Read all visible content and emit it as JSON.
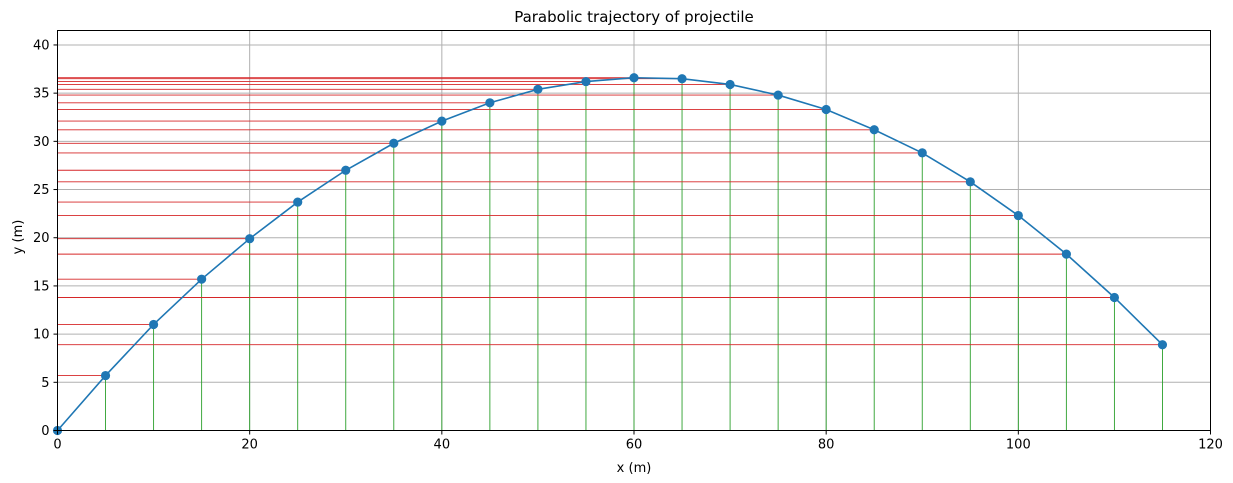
{
  "chart_data": {
    "type": "line",
    "title": "Parabolic trajectory of projectile",
    "xlabel": "x (m)",
    "ylabel": "y (m)",
    "xlim": [
      0,
      120
    ],
    "ylim": [
      0,
      41.5
    ],
    "x_ticks": [
      "0",
      "20",
      "40",
      "60",
      "80",
      "100",
      "120"
    ],
    "y_ticks": [
      "0",
      "5",
      "10",
      "15",
      "20",
      "25",
      "30",
      "35",
      "40"
    ],
    "grid": true,
    "x": [
      0,
      5,
      10,
      15,
      20,
      25,
      30,
      35,
      40,
      45,
      50,
      55,
      60,
      65,
      70,
      75,
      80,
      85,
      90,
      95,
      100,
      105,
      110,
      115
    ],
    "y": [
      0,
      5.7,
      11.0,
      15.7,
      19.9,
      23.7,
      27.0,
      29.8,
      32.1,
      34.0,
      35.4,
      36.2,
      36.6,
      36.5,
      35.9,
      34.8,
      33.3,
      31.2,
      28.8,
      25.8,
      22.3,
      18.3,
      13.8,
      8.9
    ],
    "colors": {
      "line": "#1f77b4",
      "marker": "#1f77b4",
      "horizontal_guides": "#d62728",
      "vertical_guides": "#2ca02c",
      "grid": "#b0b0b0"
    }
  }
}
